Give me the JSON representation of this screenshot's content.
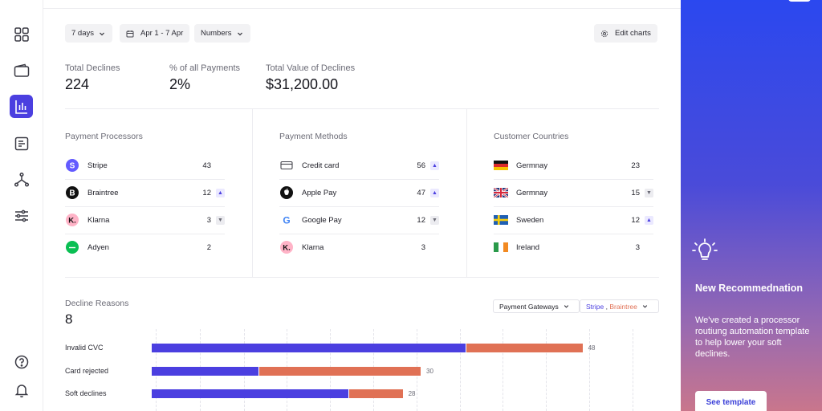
{
  "filters": {
    "period": "7 days",
    "date_range": "Apr 1 - 7 Apr",
    "display_mode": "Numbers",
    "edit_charts": "Edit charts"
  },
  "stats": [
    {
      "label": "Total Declines",
      "value": "224"
    },
    {
      "label": "% of all Payments",
      "value": "2%"
    },
    {
      "label": "Total Value of Declines",
      "value": "$31,200.00"
    }
  ],
  "processors": {
    "title": "Payment Processors",
    "rows": [
      {
        "name": "Stripe",
        "count": "43",
        "trend": "none",
        "icon": "stripe-logo-icon"
      },
      {
        "name": "Braintree",
        "count": "12",
        "trend": "up",
        "icon": "braintree-logo-icon"
      },
      {
        "name": "Klarna",
        "count": "3",
        "trend": "down",
        "icon": "klarna-logo-icon"
      },
      {
        "name": "Adyen",
        "count": "2",
        "trend": "none",
        "icon": "adyen-logo-icon"
      }
    ]
  },
  "methods": {
    "title": "Payment Methods",
    "rows": [
      {
        "name": "Credit card",
        "count": "56",
        "trend": "up",
        "icon": "credit-card-icon"
      },
      {
        "name": "Apple Pay",
        "count": "47",
        "trend": "up",
        "icon": "apple-logo-icon"
      },
      {
        "name": "Google Pay",
        "count": "12",
        "trend": "down",
        "icon": "google-logo-icon"
      },
      {
        "name": "Klarna",
        "count": "3",
        "trend": "none",
        "icon": "klarna-logo-icon"
      }
    ]
  },
  "countries": {
    "title": "Customer Countries",
    "rows": [
      {
        "name": "Germnay",
        "count": "23",
        "trend": "none",
        "icon": "germany-flag-icon"
      },
      {
        "name": "Germnay",
        "count": "15",
        "trend": "down",
        "icon": "uk-flag-icon"
      },
      {
        "name": "Sweden",
        "count": "12",
        "trend": "up",
        "icon": "sweden-flag-icon"
      },
      {
        "name": "Ireland",
        "count": "3",
        "trend": "none",
        "icon": "ireland-flag-icon"
      }
    ]
  },
  "reasons": {
    "label": "Decline Reasons",
    "value": "8",
    "gateway_select": "Payment Gateways",
    "series_a": "Stripe",
    "series_sep": " , ",
    "series_b": "Braintree"
  },
  "chart_data": {
    "type": "bar",
    "orientation": "horizontal",
    "stacked": true,
    "categories": [
      "Invalid CVC",
      "Card rejected",
      "Soft declines"
    ],
    "series": [
      {
        "name": "Stripe",
        "values": [
          35,
          12,
          22
        ],
        "color": "#4b3fe0"
      },
      {
        "name": "Braintree",
        "values": [
          13,
          18,
          6
        ],
        "color": "#e07155"
      }
    ],
    "totals": [
      "48",
      "30",
      "28"
    ],
    "xlim": [
      0,
      55
    ],
    "grid": true
  },
  "promo": {
    "title": "New Recommednation",
    "description": "We've created a processor routiung automation template to help lower your soft declines.",
    "button": "See template"
  },
  "colors": {
    "accent": "#4b3fe0",
    "secondary": "#e07155"
  }
}
